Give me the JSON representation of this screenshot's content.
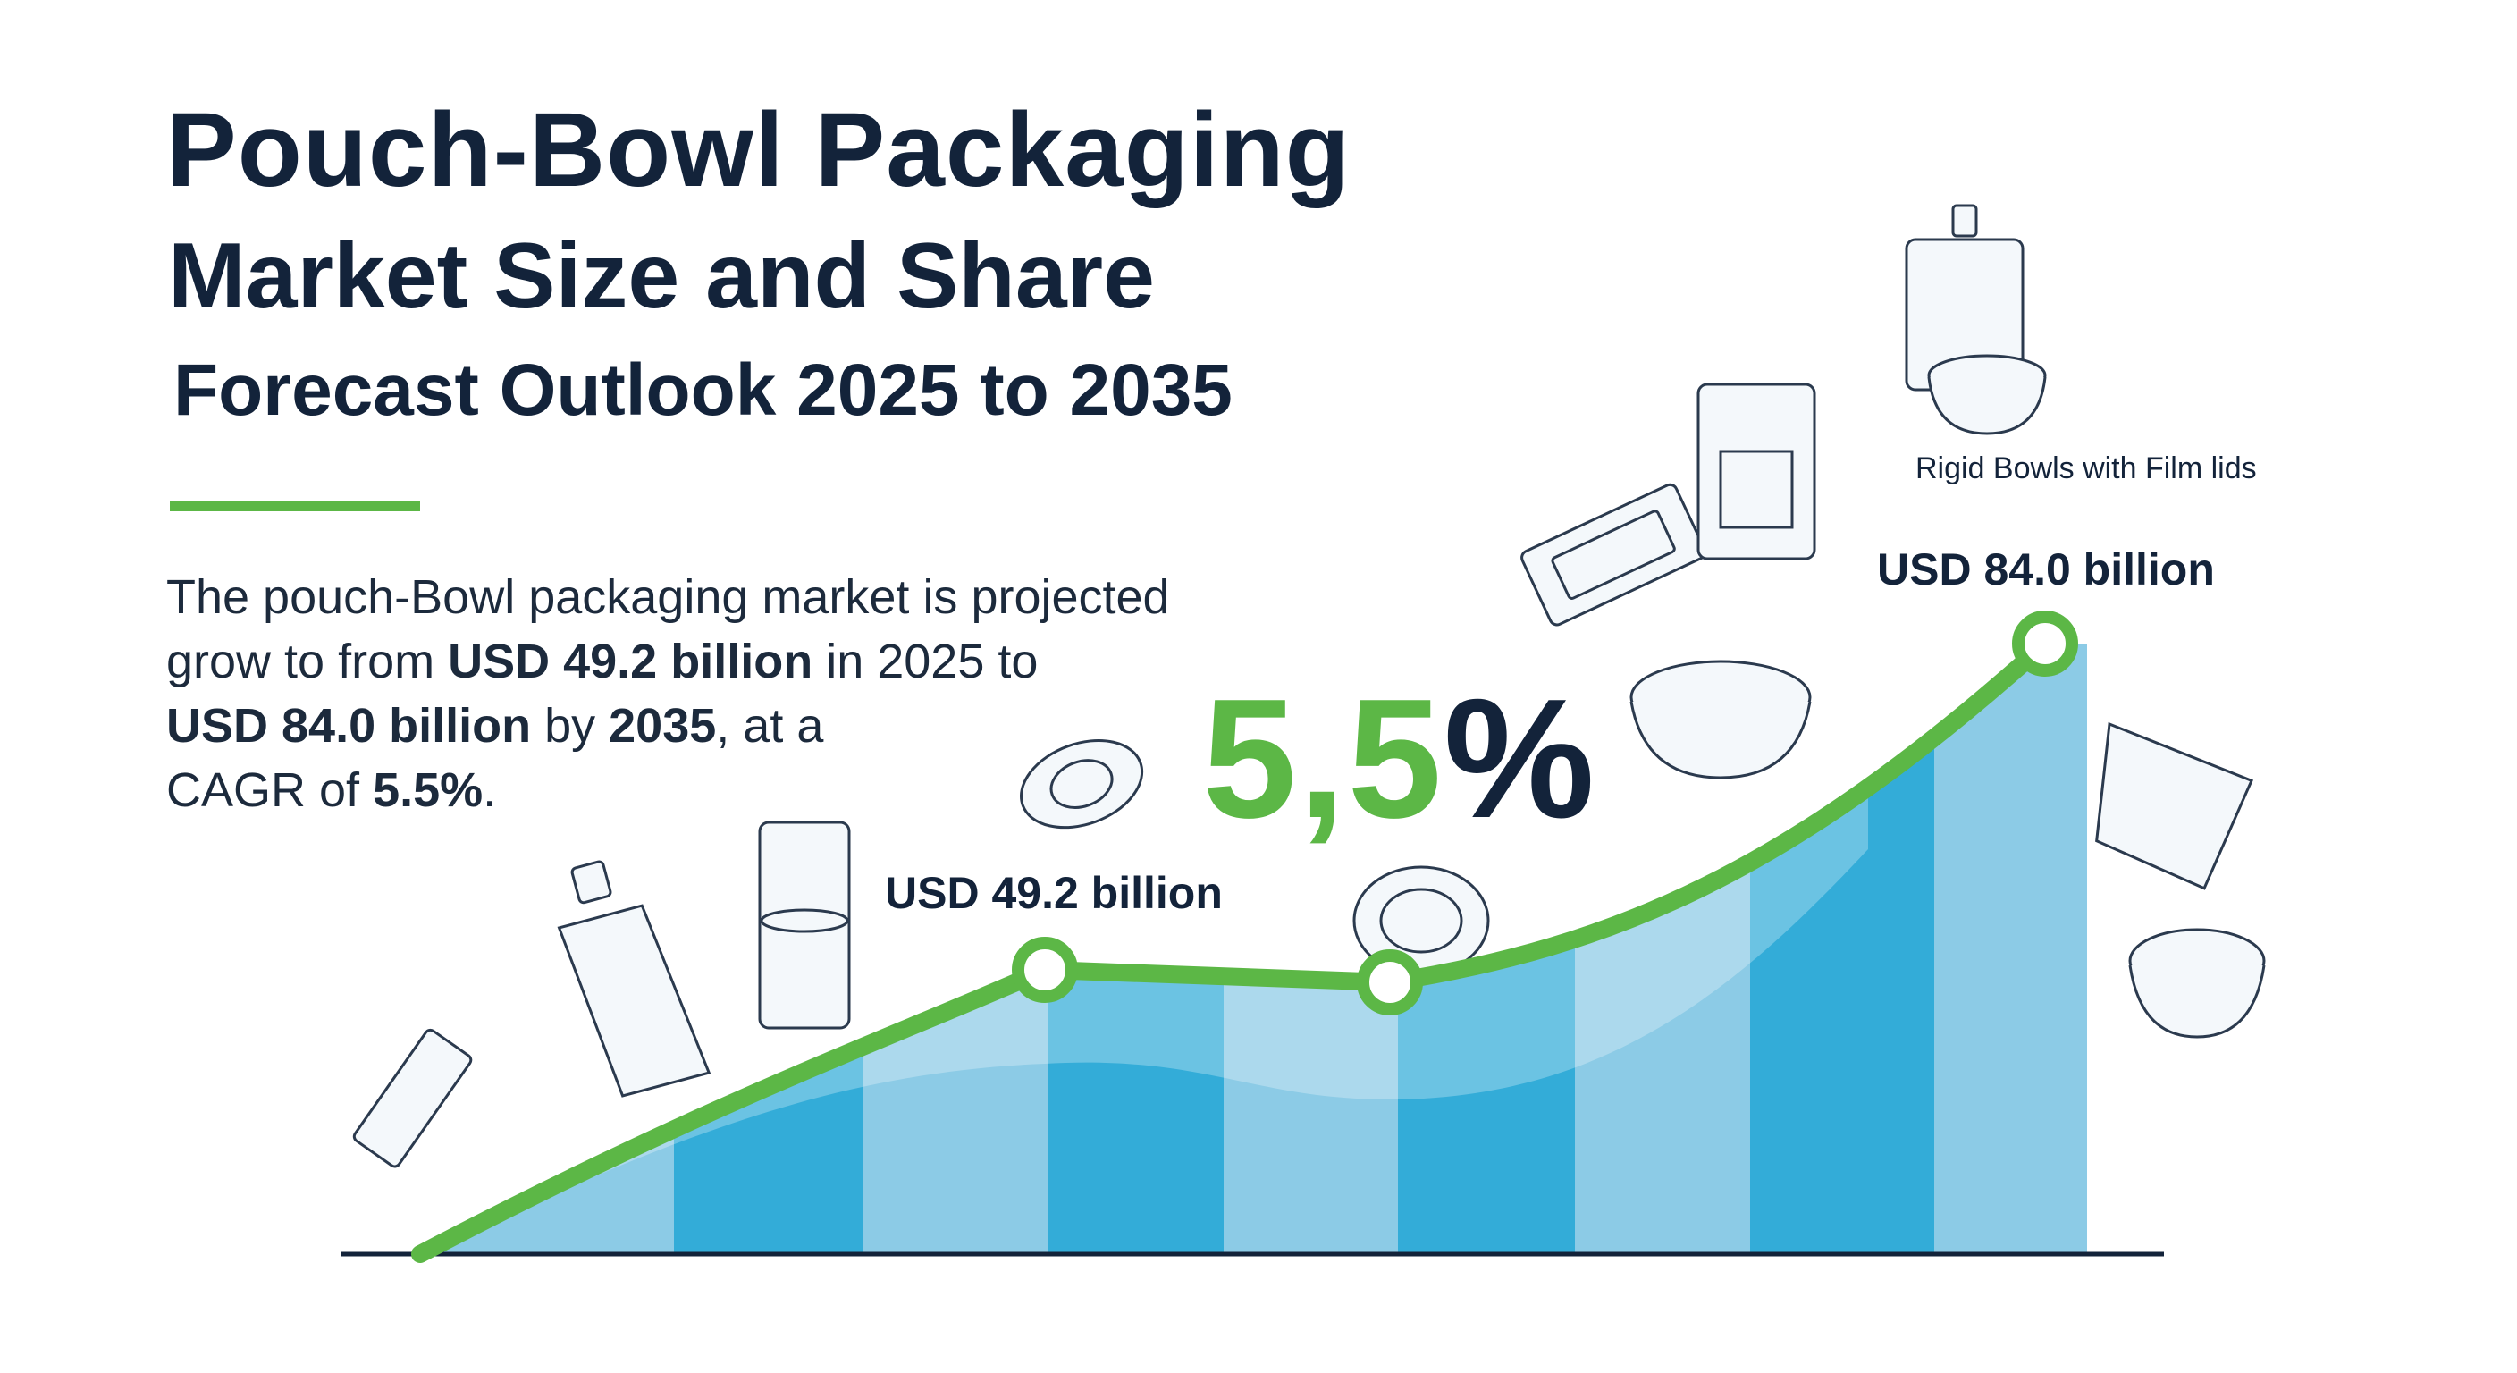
{
  "title": {
    "line1": "Pouch-Bowl Packaging",
    "line2": "Market Size and Share",
    "line3": "Forecast Outlook 2025 to 2035"
  },
  "summary": {
    "p1": "The pouch-Bowl packaging market is projected",
    "p2a": "grow to from ",
    "p2b": "USD 49.2 billion",
    "p2c": " in 2025 to",
    "p3a": "USD 84.0 billion",
    "p3b": " by ",
    "p3c": "2035",
    "p3d": ", at a",
    "p4a": "CAGR of ",
    "p4b": "5.5%",
    "p4c": "."
  },
  "cagr_big": {
    "num": "5,5",
    "pct": "%"
  },
  "colors": {
    "green": "#5cb746",
    "blue_dark": "#33acd8",
    "blue_light": "#8ccbe6",
    "navy": "#13233a"
  },
  "chart_data": {
    "type": "area",
    "title": "Pouch-Bowl Packaging Market Size",
    "points": [
      {
        "year": 2025,
        "value": 49.2,
        "label": "USD 49.2 billion"
      },
      {
        "year": 2035,
        "value": 84.0,
        "label": "USD 84.0 billion"
      }
    ],
    "cagr_percent": 5.5,
    "annotation": "Rigid Bowls with Film lids",
    "unit": "USD billion"
  }
}
